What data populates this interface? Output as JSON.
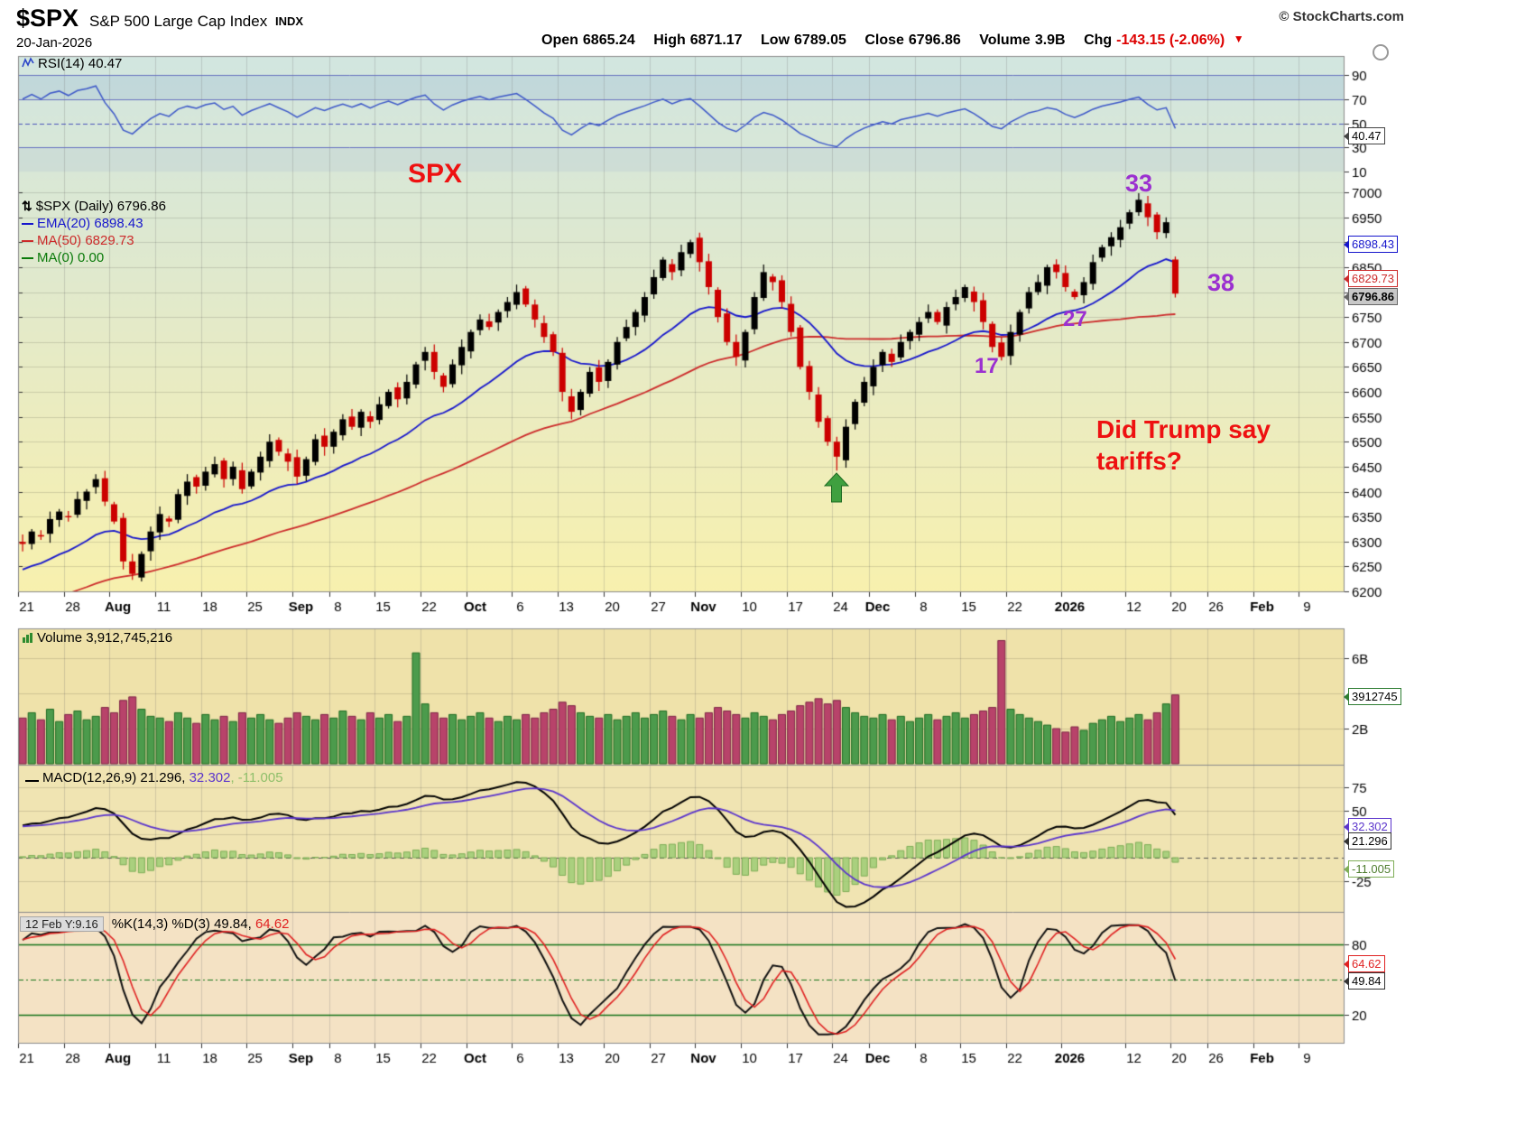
{
  "header": {
    "symbol": "$SPX",
    "name": "S&P 500 Large Cap Index",
    "exchange": "INDX",
    "copyright": "© StockCharts.com",
    "date": "20-Jan-2026",
    "quote": {
      "open_label": "Open",
      "open": "6865.24",
      "high_label": "High",
      "high": "6871.17",
      "low_label": "Low",
      "low": "6789.05",
      "close_label": "Close",
      "close": "6796.86",
      "volume_label": "Volume",
      "volume": "3.9B",
      "chg_label": "Chg",
      "chg": "-143.15 (-2.06%)",
      "chg_dir": "▼"
    }
  },
  "panels": {
    "rsi": {
      "legend": "RSI(14) 40.47",
      "tag": "40.47",
      "y_ticks": [
        90,
        70,
        50,
        30,
        10
      ]
    },
    "price": {
      "legend_main": "$SPX (Daily) 6796.86",
      "legend_ema": "EMA(20) 6898.43",
      "legend_ma50": "MA(50) 6829.73",
      "legend_ma0": "MA(0) 0.00",
      "tag_ema": "6898.43",
      "tag_ma50": "6829.73",
      "tag_last": "6796.86"
    },
    "volume": {
      "legend": "Volume 3,912,745,216",
      "tag": "3912745",
      "y_ticks": [
        {
          "v": 6,
          "label": "6B"
        },
        {
          "v": 2,
          "label": "2B"
        }
      ]
    },
    "macd": {
      "legend_macd": "MACD(12,26,9) 21.296,",
      "legend_signal": " 32.302",
      "legend_hist": ", -11.005",
      "tag_signal": "32.302",
      "tag_macd": "21.296",
      "tag_hist": "-11.005",
      "y_ticks": [
        75,
        50,
        -25
      ]
    },
    "stoch": {
      "readout": "12 Feb Y:9.16",
      "legend_k": "%K(14,3) %D(3) 49.84,",
      "legend_d": " 64.62",
      "tag_d": "64.62",
      "tag_k": "49.84",
      "y_ticks": [
        80,
        20
      ]
    }
  },
  "annotations": {
    "spx": "SPX",
    "n33": "33",
    "n38": "38",
    "n27": "27",
    "n17": "17",
    "tariffs_line1": "Did Trump say",
    "tariffs_line2": "tariffs?"
  },
  "colors": {
    "candle_up": "#000000",
    "candle_down": "#cc0000",
    "volume_up": "#4c9b4c",
    "volume_down": "#b8436a",
    "ema20": "#1616cc",
    "ma50": "#cc2a2a",
    "rsi_line": "#3c57c8",
    "macd_line": "#000000",
    "macd_signal": "#5b35cc",
    "macd_hist": "#9ecd74",
    "stoch_k": "#111111",
    "stoch_d": "#e02222",
    "annotation_purple": "#9b30d0",
    "annotation_red": "#ee1111",
    "arrow_green": "#3fa03f"
  },
  "chart_data": {
    "type": "candlestick",
    "title": "$SPX S&P 500 Large Cap Index (Daily)",
    "date": "20-Jan-2026",
    "price_ylim": [
      6200,
      7000
    ],
    "price_tick_step": 50,
    "total_slots": 145,
    "x_ticks": [
      {
        "i": 0,
        "label": "21"
      },
      {
        "i": 5,
        "label": "28"
      },
      {
        "i": 10,
        "label": "Aug",
        "bold": true
      },
      {
        "i": 15,
        "label": "11"
      },
      {
        "i": 20,
        "label": "18"
      },
      {
        "i": 25,
        "label": "25"
      },
      {
        "i": 30,
        "label": "Sep",
        "bold": true
      },
      {
        "i": 34,
        "label": "8"
      },
      {
        "i": 39,
        "label": "15"
      },
      {
        "i": 44,
        "label": "22"
      },
      {
        "i": 49,
        "label": "Oct",
        "bold": true
      },
      {
        "i": 54,
        "label": "6"
      },
      {
        "i": 59,
        "label": "13"
      },
      {
        "i": 64,
        "label": "20"
      },
      {
        "i": 69,
        "label": "27"
      },
      {
        "i": 74,
        "label": "Nov",
        "bold": true
      },
      {
        "i": 79,
        "label": "10"
      },
      {
        "i": 84,
        "label": "17"
      },
      {
        "i": 89,
        "label": "24"
      },
      {
        "i": 93,
        "label": "Dec",
        "bold": true
      },
      {
        "i": 98,
        "label": "8"
      },
      {
        "i": 103,
        "label": "15"
      },
      {
        "i": 108,
        "label": "22"
      },
      {
        "i": 114,
        "label": "2026",
        "bold": true
      },
      {
        "i": 121,
        "label": "12"
      },
      {
        "i": 126,
        "label": "20"
      },
      {
        "i": 130,
        "label": "26"
      },
      {
        "i": 135,
        "label": "Feb",
        "bold": true
      },
      {
        "i": 140,
        "label": "9"
      }
    ],
    "closes": [
      6295,
      6320,
      6310,
      6345,
      6360,
      6350,
      6385,
      6400,
      6425,
      6380,
      6340,
      6260,
      6235,
      6275,
      6320,
      6355,
      6340,
      6395,
      6420,
      6410,
      6440,
      6455,
      6425,
      6450,
      6405,
      6440,
      6470,
      6500,
      6480,
      6460,
      6430,
      6465,
      6505,
      6490,
      6520,
      6545,
      6530,
      6560,
      6540,
      6575,
      6600,
      6585,
      6620,
      6655,
      6680,
      6640,
      6610,
      6655,
      6690,
      6720,
      6745,
      6730,
      6760,
      6780,
      6800,
      6775,
      6745,
      6710,
      6680,
      6600,
      6560,
      6600,
      6640,
      6620,
      6660,
      6700,
      6730,
      6760,
      6790,
      6830,
      6865,
      6840,
      6880,
      6900,
      6860,
      6810,
      6750,
      6700,
      6670,
      6720,
      6790,
      6840,
      6820,
      6780,
      6720,
      6650,
      6600,
      6540,
      6500,
      6470,
      6530,
      6580,
      6620,
      6650,
      6680,
      6660,
      6700,
      6720,
      6740,
      6760,
      6740,
      6770,
      6790,
      6810,
      6780,
      6740,
      6690,
      6670,
      6720,
      6760,
      6800,
      6820,
      6850,
      6840,
      6810,
      6790,
      6820,
      6860,
      6890,
      6910,
      6930,
      6960,
      6985,
      6950,
      6920,
      6940,
      6796.86
    ],
    "volumes_B": [
      2.6,
      2.9,
      2.5,
      3.1,
      2.4,
      2.8,
      3.0,
      2.5,
      2.7,
      3.2,
      2.9,
      3.6,
      3.8,
      3.1,
      2.7,
      2.6,
      2.4,
      2.9,
      2.6,
      2.3,
      2.8,
      2.5,
      2.7,
      2.4,
      2.9,
      2.6,
      2.8,
      2.5,
      2.3,
      2.6,
      2.9,
      2.7,
      2.5,
      2.8,
      2.6,
      3.0,
      2.7,
      2.5,
      2.9,
      2.6,
      2.8,
      2.4,
      2.7,
      6.3,
      3.4,
      2.9,
      2.6,
      2.8,
      2.5,
      2.7,
      2.9,
      2.6,
      2.4,
      2.7,
      2.5,
      2.8,
      2.6,
      2.9,
      3.1,
      3.5,
      3.3,
      2.9,
      2.7,
      2.6,
      2.8,
      2.5,
      2.7,
      2.9,
      2.6,
      2.8,
      3.0,
      2.7,
      2.5,
      2.8,
      2.6,
      2.9,
      3.2,
      3.0,
      2.8,
      2.6,
      2.9,
      2.7,
      2.5,
      2.8,
      3.0,
      3.3,
      3.5,
      3.7,
      3.4,
      3.6,
      3.2,
      2.9,
      2.7,
      2.6,
      2.8,
      2.5,
      2.7,
      2.4,
      2.6,
      2.8,
      2.5,
      2.7,
      2.9,
      2.6,
      2.8,
      3.0,
      3.2,
      7.0,
      3.1,
      2.8,
      2.6,
      2.4,
      2.2,
      2.0,
      1.8,
      2.1,
      1.9,
      2.3,
      2.5,
      2.7,
      2.4,
      2.6,
      2.8,
      2.5,
      2.9,
      3.4,
      3.9127
    ],
    "last_ohlc": {
      "open": 6865.24,
      "high": 6871.17,
      "low": 6789.05,
      "close": 6796.86
    },
    "hl_overrides": {
      "89": {
        "low": 6442
      },
      "122": {
        "high": 6998
      }
    },
    "indicator_values": {
      "rsi14": 40.47,
      "ema20": 6898.43,
      "ma50": 6829.73,
      "macd": 21.296,
      "macd_signal": 32.302,
      "macd_hist": -11.005,
      "stoch_k": 49.84,
      "stoch_d": 64.62,
      "volume": 3912745216,
      "chg": -143.15,
      "chg_pct": -2.06
    }
  }
}
